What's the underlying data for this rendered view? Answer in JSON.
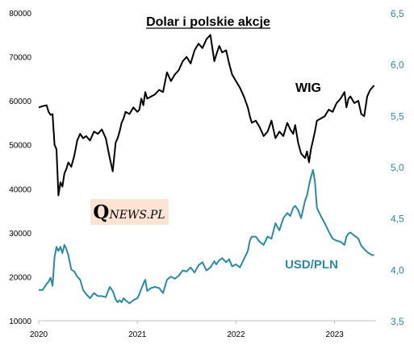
{
  "chart_data": {
    "type": "line",
    "title": "Dolar i polskie akcje",
    "xlabel": "",
    "ylabel": "",
    "x_ticks": [
      "2020",
      "2021",
      "2022",
      "2023"
    ],
    "xlim": [
      2020.0,
      2023.42
    ],
    "y_left": {
      "ticks": [
        "10000",
        "20000",
        "30000",
        "40000",
        "50000",
        "60000",
        "70000",
        "80000"
      ],
      "ylim": [
        10000,
        80000
      ]
    },
    "y_right": {
      "ticks": [
        "3,5",
        "4,0",
        "4,5",
        "5,0",
        "5,5",
        "6,0",
        "6,5"
      ],
      "ylim": [
        3.5,
        6.5
      ]
    },
    "grid": false,
    "logo": "QNEWS.PL",
    "series": [
      {
        "name": "WIG",
        "axis": "left",
        "color": "#000000",
        "x": [
          2020.0,
          2020.04,
          2020.08,
          2020.1,
          2020.12,
          2020.14,
          2020.16,
          2020.18,
          2020.2,
          2020.22,
          2020.24,
          2020.26,
          2020.28,
          2020.3,
          2020.33,
          2020.36,
          2020.39,
          2020.42,
          2020.45,
          2020.48,
          2020.52,
          2020.56,
          2020.6,
          2020.64,
          2020.68,
          2020.72,
          2020.75,
          2020.78,
          2020.8,
          2020.82,
          2020.84,
          2020.86,
          2020.88,
          2020.92,
          2020.96,
          2021.0,
          2021.02,
          2021.04,
          2021.06,
          2021.08,
          2021.1,
          2021.14,
          2021.18,
          2021.22,
          2021.26,
          2021.3,
          2021.34,
          2021.38,
          2021.42,
          2021.46,
          2021.5,
          2021.54,
          2021.58,
          2021.62,
          2021.66,
          2021.7,
          2021.74,
          2021.78,
          2021.8,
          2021.83,
          2021.86,
          2021.9,
          2021.93,
          2021.96,
          2022.0,
          2022.04,
          2022.08,
          2022.12,
          2022.14,
          2022.16,
          2022.2,
          2022.24,
          2022.28,
          2022.32,
          2022.36,
          2022.4,
          2022.44,
          2022.48,
          2022.52,
          2022.55,
          2022.58,
          2022.6,
          2022.63,
          2022.66,
          2022.7,
          2022.72,
          2022.74,
          2022.76,
          2022.78,
          2022.8,
          2022.82,
          2022.86,
          2022.9,
          2022.94,
          2022.98,
          2023.02,
          2023.06,
          2023.1,
          2023.12,
          2023.14,
          2023.16,
          2023.2,
          2023.24,
          2023.27,
          2023.3,
          2023.33,
          2023.36,
          2023.38,
          2023.4
        ],
        "values": [
          58500,
          58800,
          59000,
          57500,
          56800,
          57000,
          50000,
          49000,
          38500,
          41500,
          40500,
          43500,
          44500,
          46000,
          45000,
          47500,
          51000,
          52500,
          51500,
          52000,
          51000,
          53000,
          52500,
          53500,
          51500,
          47000,
          44000,
          50500,
          51500,
          53000,
          55000,
          56000,
          57500,
          57000,
          58500,
          57500,
          58000,
          60500,
          59000,
          62000,
          60500,
          61000,
          61500,
          62500,
          62000,
          66500,
          64500,
          66000,
          67000,
          69000,
          70000,
          68500,
          71500,
          73000,
          72000,
          74000,
          75000,
          69000,
          70500,
          72500,
          71000,
          71500,
          68500,
          66000,
          64500,
          63000,
          61000,
          58500,
          56500,
          55000,
          55500,
          54000,
          52000,
          53000,
          55500,
          51500,
          53000,
          52000,
          55000,
          53500,
          52500,
          54500,
          50500,
          48000,
          47000,
          48500,
          46000,
          49000,
          51000,
          53000,
          55500,
          56000,
          56500,
          58000,
          57500,
          59500,
          60500,
          62000,
          58500,
          60500,
          61000,
          59500,
          60000,
          57000,
          56500,
          61000,
          62500,
          63000,
          63500
        ]
      },
      {
        "name": "USD/PLN",
        "axis": "right",
        "color": "#2a8aa3",
        "x": [
          2020.0,
          2020.04,
          2020.08,
          2020.1,
          2020.12,
          2020.14,
          2020.16,
          2020.18,
          2020.2,
          2020.22,
          2020.24,
          2020.26,
          2020.28,
          2020.3,
          2020.33,
          2020.36,
          2020.39,
          2020.42,
          2020.45,
          2020.48,
          2020.52,
          2020.56,
          2020.6,
          2020.64,
          2020.68,
          2020.72,
          2020.75,
          2020.78,
          2020.8,
          2020.82,
          2020.84,
          2020.86,
          2020.88,
          2020.92,
          2020.96,
          2021.0,
          2021.02,
          2021.04,
          2021.06,
          2021.08,
          2021.1,
          2021.14,
          2021.18,
          2021.22,
          2021.26,
          2021.3,
          2021.34,
          2021.38,
          2021.42,
          2021.46,
          2021.5,
          2021.54,
          2021.58,
          2021.62,
          2021.66,
          2021.7,
          2021.74,
          2021.78,
          2021.8,
          2021.83,
          2021.86,
          2021.9,
          2021.93,
          2021.96,
          2022.0,
          2022.04,
          2022.08,
          2022.12,
          2022.14,
          2022.16,
          2022.2,
          2022.24,
          2022.28,
          2022.32,
          2022.36,
          2022.4,
          2022.44,
          2022.48,
          2022.52,
          2022.55,
          2022.58,
          2022.6,
          2022.63,
          2022.66,
          2022.7,
          2022.72,
          2022.74,
          2022.76,
          2022.78,
          2022.8,
          2022.82,
          2022.86,
          2022.9,
          2022.94,
          2022.98,
          2023.02,
          2023.06,
          2023.1,
          2023.12,
          2023.14,
          2023.16,
          2023.2,
          2023.24,
          2023.27,
          2023.3,
          2023.33,
          2023.36,
          2023.38,
          2023.4
        ],
        "values": [
          3.8,
          3.8,
          3.86,
          3.88,
          3.92,
          3.84,
          4.12,
          4.22,
          4.18,
          4.22,
          4.16,
          4.24,
          4.2,
          4.14,
          4.0,
          3.98,
          3.93,
          3.9,
          3.8,
          3.76,
          3.72,
          3.77,
          3.74,
          3.74,
          3.73,
          3.83,
          3.79,
          3.71,
          3.68,
          3.7,
          3.68,
          3.72,
          3.7,
          3.67,
          3.7,
          3.72,
          3.76,
          3.81,
          3.86,
          3.9,
          3.79,
          3.82,
          3.83,
          3.82,
          3.77,
          3.9,
          3.93,
          3.91,
          3.94,
          3.99,
          3.98,
          4.02,
          3.97,
          4.04,
          4.07,
          3.99,
          4.02,
          4.08,
          4.05,
          4.09,
          4.11,
          4.07,
          4.1,
          4.03,
          4.05,
          4.02,
          4.1,
          4.18,
          4.28,
          4.32,
          4.32,
          4.27,
          4.24,
          4.32,
          4.3,
          4.45,
          4.38,
          4.5,
          4.55,
          4.52,
          4.6,
          4.62,
          4.58,
          4.5,
          4.67,
          4.72,
          4.82,
          4.9,
          4.97,
          4.86,
          4.6,
          4.52,
          4.45,
          4.37,
          4.3,
          4.28,
          4.27,
          4.24,
          4.32,
          4.35,
          4.36,
          4.33,
          4.3,
          4.23,
          4.2,
          4.17,
          4.15,
          4.14,
          4.14
        ]
      }
    ]
  }
}
